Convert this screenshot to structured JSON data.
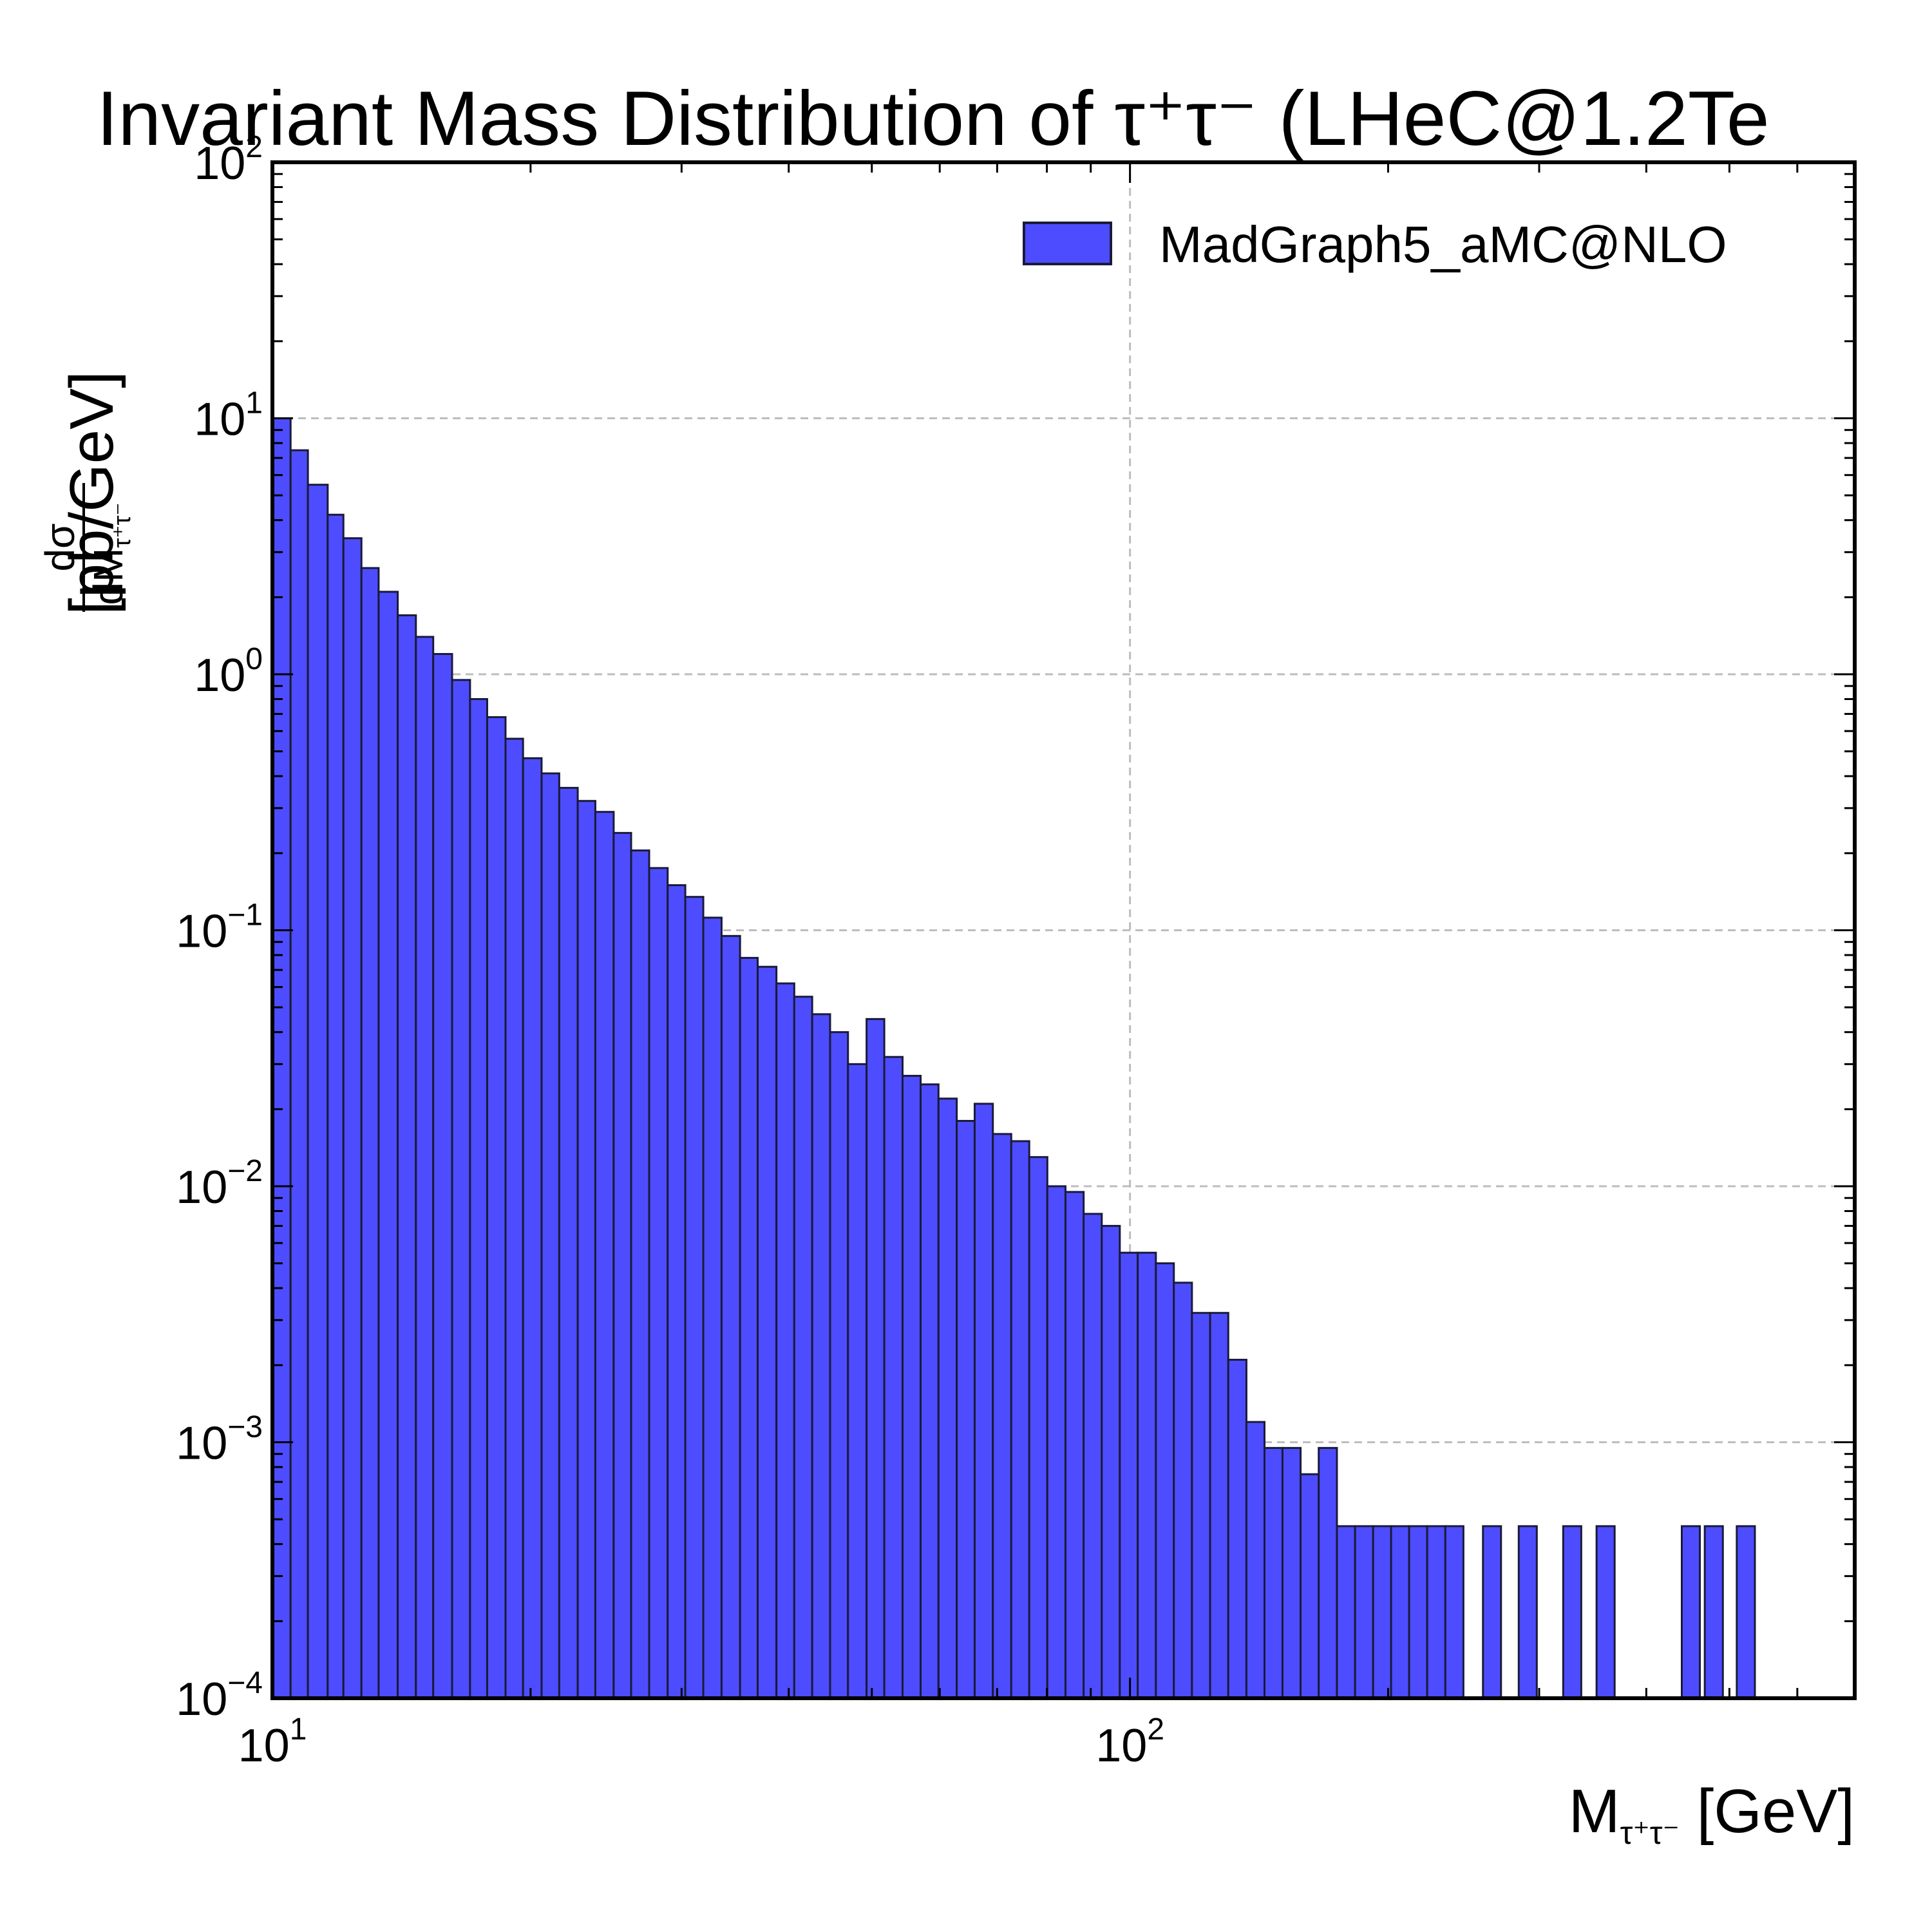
{
  "chart_data": {
    "type": "bar",
    "title": "Invariant Mass Distribution of τ⁺τ⁻ (LHeC@1.2Te",
    "xlabel": {
      "main": "M",
      "sub": "τ⁺τ⁻",
      "unit": " [GeV]"
    },
    "ylabel": {
      "numerator": "dσ",
      "denominator_main": "dM",
      "denominator_sub": "τ⁺τ⁻",
      "unit": "[pb/GeV]"
    },
    "xscale": "log",
    "yscale": "log",
    "xlim": [
      10,
      700
    ],
    "ylim": [
      0.0001,
      100
    ],
    "grid": true,
    "legend": {
      "placement": "top-right",
      "entries": [
        {
          "label": "MadGraph5_aMC@NLO",
          "color": "#4d4dff"
        }
      ]
    },
    "x_ticks": [
      {
        "base": "10",
        "exp": "1",
        "value": 10
      },
      {
        "base": "10",
        "exp": "2",
        "value": 100
      }
    ],
    "y_ticks": [
      {
        "base": "10",
        "exp": "2",
        "value": 100
      },
      {
        "base": "10",
        "exp": "1",
        "value": 10
      },
      {
        "base": "10",
        "exp": "0",
        "value": 1
      },
      {
        "base": "10",
        "exp": "−1",
        "value": 0.1
      },
      {
        "base": "10",
        "exp": "−2",
        "value": 0.01
      },
      {
        "base": "10",
        "exp": "−3",
        "value": 0.001
      },
      {
        "base": "10",
        "exp": "−4",
        "value": 0.0001
      }
    ],
    "bar_color": "#4d4dff",
    "edge_color": "#1a1a3a",
    "series": [
      {
        "bins": [
          [
            10.0,
            10.5,
            10.0
          ],
          [
            10.5,
            11.0,
            7.5
          ],
          [
            11.0,
            11.6,
            5.5
          ],
          [
            11.6,
            12.1,
            4.2
          ],
          [
            12.1,
            12.7,
            3.4
          ],
          [
            12.7,
            13.3,
            2.6
          ],
          [
            13.3,
            14.0,
            2.1
          ],
          [
            14.0,
            14.7,
            1.7
          ],
          [
            14.7,
            15.4,
            1.4
          ],
          [
            15.4,
            16.2,
            1.2
          ],
          [
            16.2,
            17.0,
            0.95
          ],
          [
            17.0,
            17.8,
            0.8
          ],
          [
            17.8,
            18.7,
            0.68
          ],
          [
            18.7,
            19.6,
            0.56
          ],
          [
            19.6,
            20.6,
            0.47
          ],
          [
            20.6,
            21.6,
            0.41
          ],
          [
            21.6,
            22.7,
            0.36
          ],
          [
            22.7,
            23.8,
            0.32
          ],
          [
            23.8,
            25.0,
            0.29
          ],
          [
            25.0,
            26.2,
            0.24
          ],
          [
            26.2,
            27.5,
            0.205
          ],
          [
            27.5,
            28.9,
            0.175
          ],
          [
            28.9,
            30.3,
            0.15
          ],
          [
            30.3,
            31.8,
            0.135
          ],
          [
            31.8,
            33.4,
            0.112
          ],
          [
            33.4,
            35.1,
            0.095
          ],
          [
            35.1,
            36.8,
            0.078
          ],
          [
            36.8,
            38.7,
            0.072
          ],
          [
            38.7,
            40.6,
            0.062
          ],
          [
            40.6,
            42.6,
            0.055
          ],
          [
            42.6,
            44.7,
            0.047
          ],
          [
            44.7,
            46.9,
            0.04
          ],
          [
            46.9,
            49.3,
            0.03
          ],
          [
            49.3,
            51.7,
            0.045
          ],
          [
            51.7,
            54.3,
            0.032
          ],
          [
            54.3,
            57.0,
            0.027
          ],
          [
            57.0,
            59.8,
            0.025
          ],
          [
            59.8,
            62.8,
            0.022
          ],
          [
            62.8,
            65.9,
            0.018
          ],
          [
            65.9,
            69.2,
            0.021
          ],
          [
            69.2,
            72.7,
            0.016
          ],
          [
            72.7,
            76.3,
            0.015
          ],
          [
            76.3,
            80.1,
            0.013
          ],
          [
            80.1,
            84.1,
            0.01
          ],
          [
            84.1,
            88.3,
            0.0095
          ],
          [
            88.3,
            92.7,
            0.0078
          ],
          [
            92.7,
            97.3,
            0.007
          ],
          [
            97.3,
            102.1,
            0.0055
          ],
          [
            102.1,
            107.2,
            0.0055
          ],
          [
            107.2,
            112.5,
            0.005
          ],
          [
            112.5,
            118.1,
            0.0042
          ],
          [
            118.1,
            124.0,
            0.0032
          ],
          [
            124.0,
            130.2,
            0.0032
          ],
          [
            130.2,
            136.7,
            0.0021
          ],
          [
            136.7,
            143.5,
            0.0012
          ],
          [
            143.5,
            150.6,
            0.00095
          ],
          [
            150.6,
            158.1,
            0.00095
          ],
          [
            158.1,
            166.0,
            0.00075
          ],
          [
            166.0,
            174.3,
            0.00095
          ],
          [
            174.3,
            183.0,
            0.00047
          ],
          [
            183.0,
            192.1,
            0.00047
          ],
          [
            192.1,
            201.6,
            0.00047
          ],
          [
            201.6,
            211.6,
            0.00047
          ],
          [
            211.6,
            222.1,
            0.00047
          ],
          [
            222.1,
            233.2,
            0.00047
          ],
          [
            233.2,
            244.8,
            0.00047
          ],
          [
            258.0,
            270.8,
            0.00047
          ],
          [
            284.0,
            298.1,
            0.00047
          ],
          [
            320.0,
            335.9,
            0.00047
          ],
          [
            350.0,
            367.4,
            0.00047
          ],
          [
            440.0,
            461.9,
            0.00047
          ],
          [
            468.0,
            491.3,
            0.00047
          ],
          [
            510.0,
            535.4,
            0.00047
          ]
        ]
      }
    ]
  }
}
